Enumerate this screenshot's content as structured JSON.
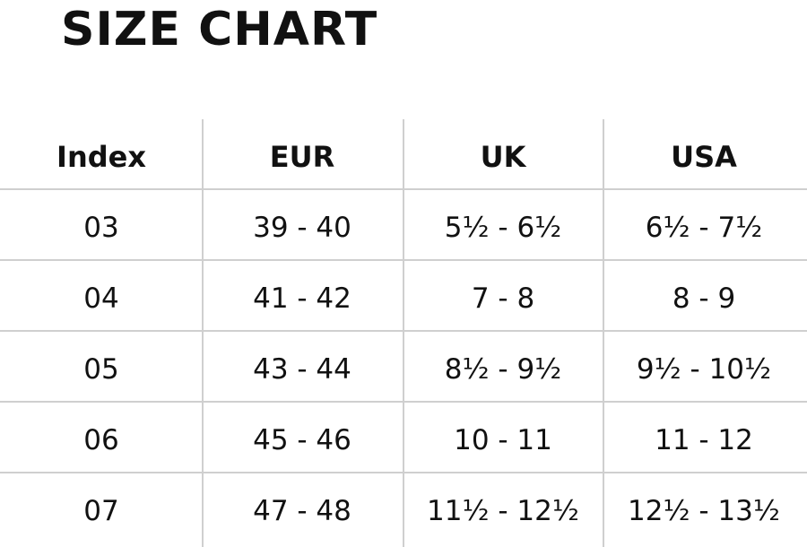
{
  "title": "SIZE CHART",
  "table": {
    "headers": [
      "Index",
      "EUR",
      "UK",
      "USA"
    ],
    "rows": [
      [
        "03",
        "39 - 40",
        "5½ - 6½",
        "6½ - 7½"
      ],
      [
        "04",
        "41 - 42",
        "7 - 8",
        "8 - 9"
      ],
      [
        "05",
        "43 - 44",
        "8½ - 9½",
        "9½ - 10½"
      ],
      [
        "06",
        "45 - 46",
        "10 - 11",
        "11 - 12"
      ],
      [
        "07",
        "47 - 48",
        "11½ - 12½",
        "12½ - 13½"
      ]
    ]
  }
}
